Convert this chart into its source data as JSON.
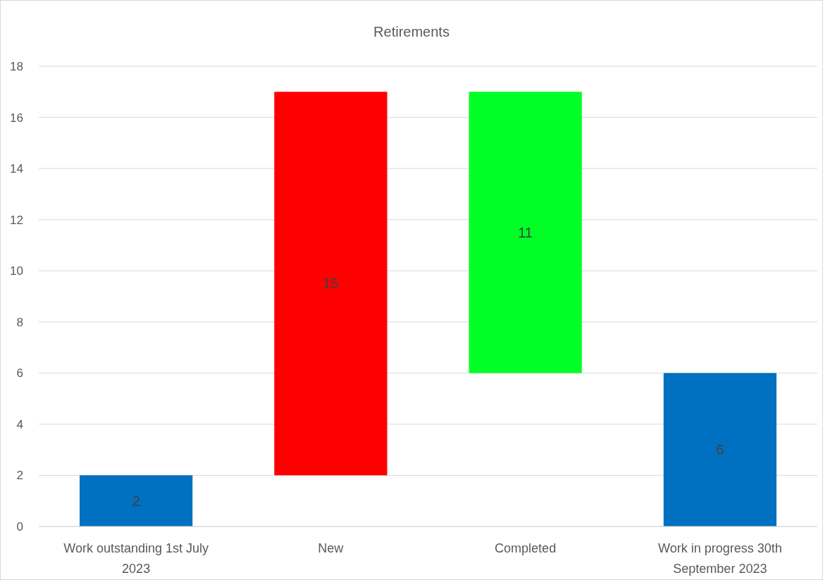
{
  "chart_data": {
    "type": "bar",
    "title": "Retirements",
    "categories": [
      "Work outstanding 1st July 2023",
      "New",
      "Completed",
      "Work in progress 30th September 2023"
    ],
    "values": [
      2,
      15,
      11,
      6
    ],
    "base": [
      0,
      2,
      6,
      0
    ],
    "colors": [
      "#0070c0",
      "#ff0000",
      "#00ff26",
      "#0070c0"
    ],
    "ylim": [
      0,
      18
    ],
    "yticks": [
      0,
      2,
      4,
      6,
      8,
      10,
      12,
      14,
      16,
      18
    ],
    "grid": "y",
    "data_labels": true
  }
}
